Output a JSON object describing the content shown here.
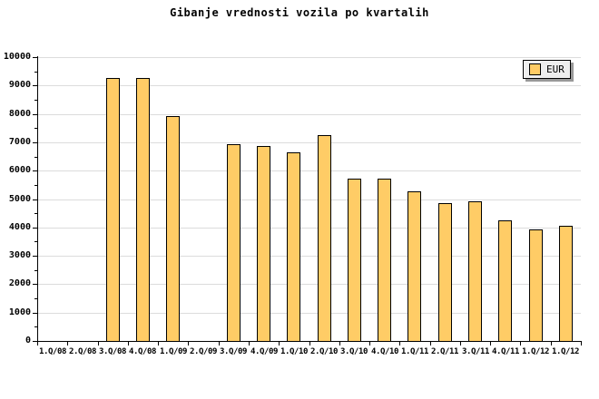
{
  "title": "Gibanje vrednosti vozila po kvartalih",
  "legend": {
    "items": [
      {
        "label": "EUR",
        "swatch_color": "#FFCC66"
      }
    ],
    "position": "top-right"
  },
  "chart_data": {
    "type": "bar",
    "title": "Gibanje vrednosti vozila po kvartalih",
    "categories": [
      "1.Q/08",
      "2.Q/08",
      "3.Q/08",
      "4.Q/08",
      "1.Q/09",
      "2.Q/09",
      "3.Q/09",
      "4.Q/09",
      "1.Q/10",
      "2.Q/10",
      "3.Q/10",
      "4.Q/10",
      "1.Q/11",
      "2.Q/11",
      "3.Q/11",
      "4.Q/11",
      "1.Q/12",
      "1.Q/12"
    ],
    "series": [
      {
        "name": "EUR",
        "values": [
          null,
          null,
          9250,
          9250,
          7920,
          null,
          6920,
          6870,
          6640,
          7250,
          5730,
          5730,
          5270,
          4850,
          4910,
          4240,
          3940,
          4050
        ]
      }
    ],
    "xlabel": "",
    "ylabel": "",
    "ylim": [
      0,
      10000
    ],
    "ytick_major": 1000,
    "ytick_minor": 500,
    "grid": "horizontal",
    "legend_position": "top-right",
    "colors": {
      "bar_fill": "#FFCC66",
      "bar_border": "#000000",
      "grid": "#dcdcdc",
      "axis": "#000000",
      "background": "#ffffff",
      "legend_bg": "#eeeeee",
      "legend_shadow": "#999999"
    }
  }
}
